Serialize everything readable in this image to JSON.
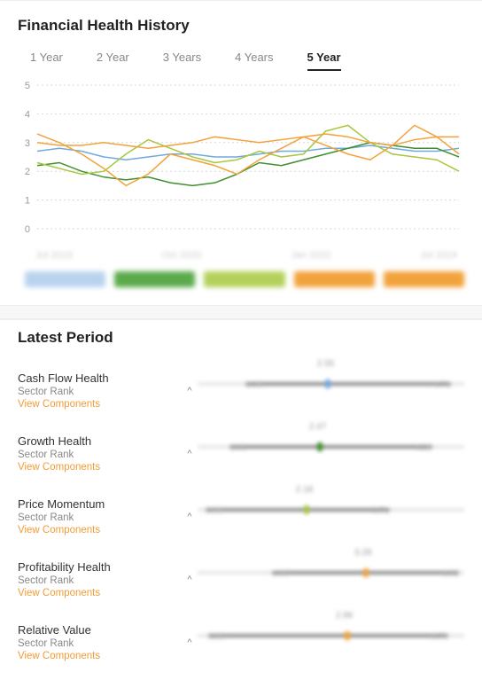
{
  "history": {
    "title": "Financial Health History",
    "tabs": [
      "1 Year",
      "2 Year",
      "3 Years",
      "4 Years",
      "5 Year"
    ],
    "activeTab": 4,
    "chart": {
      "type": "line",
      "ylim": [
        0,
        5
      ],
      "yticks": [
        0,
        1,
        2,
        3,
        4,
        5
      ],
      "grid_color": "#d8d8d8",
      "axis_label_color": "#999999",
      "axis_fontsize": 11,
      "background_color": "#ffffff",
      "xLabels": [
        "Jul 2019",
        "Oct 2020",
        "Jan 2022",
        "Jul 2024"
      ],
      "series": [
        {
          "name": "Cash Flow Health",
          "color": "#6fa9e0",
          "values": [
            2.7,
            2.8,
            2.7,
            2.5,
            2.4,
            2.5,
            2.6,
            2.6,
            2.5,
            2.5,
            2.6,
            2.7,
            2.7,
            2.8,
            2.8,
            2.9,
            2.8,
            2.7,
            2.7,
            2.8
          ]
        },
        {
          "name": "Growth Health",
          "color": "#3f8f2f",
          "values": [
            2.2,
            2.3,
            2.0,
            1.8,
            1.7,
            1.8,
            1.6,
            1.5,
            1.6,
            1.9,
            2.3,
            2.2,
            2.4,
            2.6,
            2.8,
            3.0,
            2.9,
            2.8,
            2.8,
            2.5
          ]
        },
        {
          "name": "Price Momentum",
          "color": "#a8c63e",
          "values": [
            2.3,
            2.1,
            1.9,
            2.0,
            2.6,
            3.1,
            2.8,
            2.5,
            2.3,
            2.4,
            2.7,
            2.5,
            2.6,
            3.4,
            3.6,
            3.0,
            2.6,
            2.5,
            2.4,
            2.0
          ]
        },
        {
          "name": "Profitability Health",
          "color": "#f2a23a",
          "values": [
            3.3,
            3.0,
            2.6,
            2.1,
            1.5,
            1.9,
            2.6,
            2.4,
            2.2,
            1.9,
            2.4,
            2.8,
            3.2,
            2.9,
            2.6,
            2.4,
            2.9,
            3.6,
            3.2,
            2.6
          ]
        },
        {
          "name": "Relative Value",
          "color": "#f2a23a",
          "values": [
            3.0,
            2.9,
            2.9,
            3.0,
            2.9,
            2.8,
            2.9,
            3.0,
            3.2,
            3.1,
            3.0,
            3.1,
            3.2,
            3.3,
            3.2,
            3.0,
            2.9,
            3.1,
            3.2,
            3.2
          ]
        }
      ],
      "legend_colors": [
        "#b8d3ee",
        "#5aaa4a",
        "#b3d15a",
        "#f2a23a",
        "#f2a23a"
      ]
    }
  },
  "latest": {
    "title": "Latest Period",
    "link_label": "View Components",
    "sub_label": "Sector Rank",
    "link_color": "#f39c36",
    "metrics": [
      {
        "name": "Cash Flow Health",
        "value": 2.55,
        "low": 1.38,
        "high": 4.71,
        "fillStart": 18,
        "fillEnd": 95,
        "marker": 48,
        "markerColor": "#6fa9e0"
      },
      {
        "name": "Growth Health",
        "value": 2.47,
        "low": 1.01,
        "high": 4.26,
        "fillStart": 12,
        "fillEnd": 88,
        "marker": 45,
        "markerColor": "#3f8f2f"
      },
      {
        "name": "Price Momentum",
        "value": 2.18,
        "low": 0.99,
        "high": 3.71,
        "fillStart": 3,
        "fillEnd": 72,
        "marker": 40,
        "markerColor": "#a8c63e"
      },
      {
        "name": "Profitability Health",
        "value": 3.28,
        "low": 1.8,
        "high": 4.92,
        "fillStart": 28,
        "fillEnd": 98,
        "marker": 62,
        "markerColor": "#f2a23a"
      },
      {
        "name": "Relative Value",
        "value": 2.96,
        "low": 0.8,
        "high": 4.79,
        "fillStart": 4,
        "fillEnd": 94,
        "marker": 55,
        "markerColor": "#f2a23a"
      }
    ]
  }
}
